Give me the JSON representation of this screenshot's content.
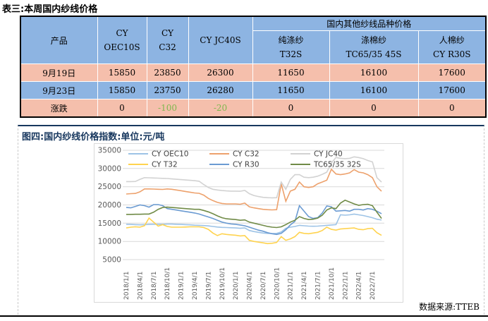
{
  "page": {
    "table_title": "表三:本周国内纱线价格",
    "source_label": "数据来源:TTEB"
  },
  "table": {
    "product_header": "产品",
    "plain_headers": [
      [
        "CY",
        "OEC10S"
      ],
      [
        "CY",
        "C32"
      ],
      [
        "CY JC40S"
      ]
    ],
    "group_header": "国内其他纱线品种价格",
    "sub_headers": [
      [
        "纯涤纱",
        "T32S"
      ],
      [
        "涤棉纱",
        "TC65/35 45S"
      ],
      [
        "人棉纱",
        "CY R30S"
      ]
    ],
    "rows": [
      {
        "label": "9月19日",
        "style": "salmon",
        "values": [
          "15850",
          "23850",
          "26300",
          "11650",
          "16100",
          "17600"
        ]
      },
      {
        "label": "9月23日",
        "style": "blue",
        "values": [
          "15850",
          "23750",
          "26280",
          "11650",
          "16100",
          "17600"
        ]
      },
      {
        "label": "涨跌",
        "style": "salmon",
        "values": [
          "0",
          "-100",
          "-20",
          "0",
          "0",
          "0"
        ]
      }
    ]
  },
  "chart": {
    "title": "图四:国内纱线价格指数:单位:元/吨"
  },
  "chart_data": {
    "type": "line",
    "title": "图四:国内纱线价格指数",
    "unit": "元/吨",
    "ylim": [
      5000,
      35000
    ],
    "yticks": [
      35000,
      30000,
      25000,
      20000,
      15000,
      10000,
      5000
    ],
    "grid": "horizontal",
    "legend_position": "top-inside",
    "x_frequency": "monthly",
    "x_range": [
      "2018/1",
      "2022/9"
    ],
    "x_tick_labels": [
      "2018/1/1",
      "2018/4/1",
      "2018/7/1",
      "2018/10/1",
      "2019/1/1",
      "2019/4/1",
      "2019/7/1",
      "2019/10/1",
      "2020/1/1",
      "2020/4/1",
      "2020/7/1",
      "2020/10/1",
      "2021/1/1",
      "2021/4/1",
      "2021/7/1",
      "2021/10/1",
      "2022/1/1",
      "2022/4/1",
      "2022/7/1"
    ],
    "series": [
      {
        "name": "CY OEC10",
        "color": "#9DC3E6",
        "values": [
          14700,
          14650,
          14600,
          14550,
          14600,
          14650,
          14700,
          14700,
          14700,
          14750,
          14750,
          14700,
          14650,
          14600,
          14550,
          14450,
          14400,
          14350,
          14250,
          14100,
          13950,
          13850,
          13800,
          13750,
          13700,
          13600,
          13700,
          13000,
          12700,
          12500,
          12300,
          12200,
          12150,
          12200,
          12600,
          13600,
          13900,
          14100,
          14400,
          14300,
          14200,
          14150,
          14200,
          14300,
          14400,
          14500,
          14600,
          17300,
          17200,
          17300,
          17500,
          17300,
          17100,
          16800,
          16500,
          16100,
          15850
        ]
      },
      {
        "name": "CY C32",
        "color": "#EDA16C",
        "values": [
          23000,
          23100,
          23150,
          23600,
          24400,
          24400,
          24350,
          24300,
          24250,
          24400,
          24300,
          24100,
          23900,
          23700,
          23500,
          23300,
          23200,
          22700,
          21800,
          21200,
          20700,
          20400,
          20300,
          20300,
          20300,
          20200,
          20500,
          19500,
          19200,
          19000,
          18800,
          18700,
          18650,
          18700,
          25800,
          21000,
          23800,
          24300,
          26300,
          25000,
          24800,
          25000,
          25800,
          26300,
          26800,
          29800,
          28500,
          28300,
          28500,
          28800,
          29700,
          29000,
          28800,
          28300,
          27500,
          25000,
          23750
        ]
      },
      {
        "name": "CY JC40",
        "color": "#D2D2D2",
        "values": [
          26400,
          26400,
          26450,
          27000,
          27500,
          27450,
          27400,
          27350,
          27300,
          27250,
          27150,
          27050,
          26950,
          26850,
          26750,
          26650,
          26500,
          25600,
          24800,
          24300,
          24100,
          23950,
          23850,
          23800,
          23800,
          23750,
          24000,
          23100,
          22600,
          22300,
          22100,
          22000,
          21950,
          22000,
          26300,
          24300,
          27000,
          28300,
          28300,
          27600,
          27500,
          27600,
          27900,
          28400,
          29000,
          31500,
          33000,
          32800,
          32700,
          32800,
          33200,
          33000,
          32700,
          32200,
          31800,
          27500,
          26280
        ]
      },
      {
        "name": "CY T32",
        "color": "#FFD34F",
        "values": [
          13700,
          13900,
          14000,
          13900,
          14300,
          16400,
          15300,
          14200,
          14600,
          14100,
          13900,
          13900,
          13900,
          13950,
          14000,
          14000,
          14000,
          13800,
          13300,
          12300,
          11600,
          12100,
          11900,
          11800,
          11700,
          11500,
          11600,
          10300,
          10000,
          9800,
          9600,
          9400,
          9500,
          9700,
          11300,
          10300,
          10700,
          11300,
          12500,
          12200,
          12100,
          12300,
          12500,
          13000,
          13900,
          13300,
          13100,
          13400,
          13500,
          13600,
          13700,
          13300,
          13200,
          13500,
          13600,
          12400,
          11650
        ]
      },
      {
        "name": "CY R30",
        "color": "#6B9BD2",
        "values": [
          19300,
          19200,
          19600,
          20000,
          19800,
          19400,
          20100,
          20100,
          19800,
          19000,
          18800,
          18600,
          18400,
          18200,
          18000,
          17800,
          17500,
          17100,
          16700,
          16300,
          15800,
          15300,
          15000,
          14800,
          14700,
          14500,
          14300,
          13900,
          13500,
          13100,
          12800,
          12400,
          12100,
          11900,
          12200,
          13200,
          14500,
          15500,
          19800,
          18300,
          16800,
          16300,
          16500,
          17800,
          19700,
          19500,
          18300,
          18400,
          18500,
          18300,
          18800,
          18800,
          18600,
          19000,
          18800,
          18300,
          17600
        ]
      },
      {
        "name": "TC65/35 32S",
        "color": "#708B47",
        "values": [
          17400,
          17400,
          17450,
          17450,
          17500,
          17500,
          18000,
          18800,
          19300,
          19400,
          19300,
          19200,
          19100,
          19000,
          18900,
          18800,
          18800,
          18500,
          18100,
          17600,
          17000,
          16500,
          16200,
          16100,
          16000,
          15800,
          15900,
          15300,
          15000,
          14700,
          14400,
          14100,
          13900,
          13800,
          14000,
          14600,
          15300,
          15800,
          16800,
          16300,
          16000,
          16100,
          16400,
          17200,
          18600,
          19200,
          19000,
          20500,
          21300,
          20800,
          20300,
          19900,
          20100,
          20200,
          19800,
          18000,
          16300
        ]
      }
    ]
  },
  "colors": {
    "header_blue": "#8DB4E2",
    "row_salmon": "#F5BFAC",
    "row_blue": "#8DB4E2",
    "negative_green": "#7EB74E",
    "chart_title_navy": "#17375E",
    "gridline": "#D9D9D9",
    "axis_text": "#595959"
  }
}
